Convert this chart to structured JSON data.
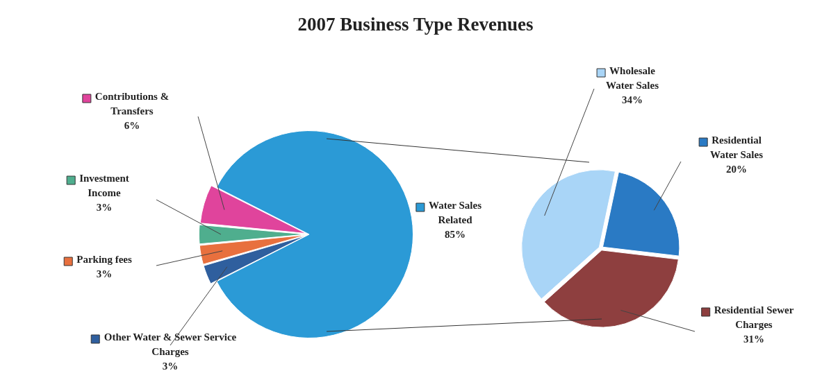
{
  "chart_data": [
    {
      "type": "pie",
      "title": "2007 Business Type Revenues",
      "categories": [
        "Water Sales Related",
        "Other Water & Sewer Service Charges",
        "Parking fees",
        "Investment Income",
        "Contributions & Transfers"
      ],
      "values": [
        85,
        3,
        3,
        3,
        6
      ],
      "colors": [
        "#2b9ad6",
        "#2f5f9e",
        "#e8703e",
        "#4fae8e",
        "#e0449c"
      ],
      "value_labels": [
        "85%",
        "3%",
        "3%",
        "3%",
        "6%"
      ],
      "legend": "left"
    },
    {
      "type": "pie",
      "categories": [
        "Wholesale Water Sales",
        "Residential Water Sales",
        "Residential Sewer Charges"
      ],
      "values": [
        34,
        20,
        31
      ],
      "colors": [
        "#a9d5f7",
        "#2a7ac4",
        "#8e3f3f"
      ],
      "value_labels": [
        "34%",
        "20%",
        "31%"
      ],
      "legend": "right"
    }
  ]
}
